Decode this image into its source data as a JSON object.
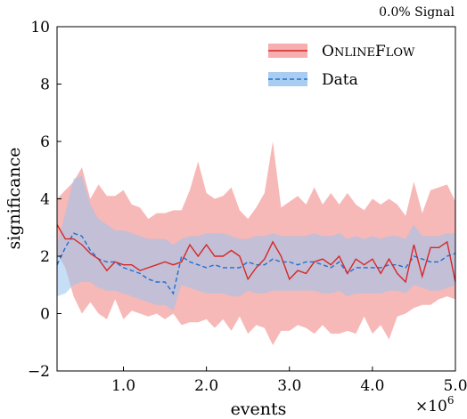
{
  "chart_data": {
    "type": "line",
    "annotation": "0.0% Signal",
    "xlabel": "events",
    "ylabel": "significance",
    "x_multiplier_label": "×10",
    "x_multiplier_exp": "6",
    "xlim": [
      0.2,
      5.0
    ],
    "ylim": [
      -2,
      10
    ],
    "x_ticks": [
      1.0,
      2.0,
      3.0,
      4.0,
      5.0
    ],
    "x_tick_labels": [
      "1.0",
      "2.0",
      "3.0",
      "4.0",
      "5.0"
    ],
    "y_ticks": [
      -2,
      0,
      2,
      4,
      6,
      8,
      10
    ],
    "y_tick_labels": [
      "−2",
      "0",
      "2",
      "4",
      "6",
      "8",
      "10"
    ],
    "grid": false,
    "legend_position": "top-right",
    "series": [
      {
        "name": "OnlineFlow",
        "legend_small_caps": true,
        "line_color": "#d62728",
        "band_color": "#f4a0a0",
        "style": "solid",
        "x": [
          0.2,
          0.3,
          0.4,
          0.5,
          0.6,
          0.7,
          0.8,
          0.9,
          1.0,
          1.1,
          1.2,
          1.3,
          1.4,
          1.5,
          1.6,
          1.7,
          1.8,
          1.9,
          2.0,
          2.1,
          2.2,
          2.3,
          2.4,
          2.5,
          2.6,
          2.7,
          2.8,
          2.9,
          3.0,
          3.1,
          3.2,
          3.3,
          3.4,
          3.5,
          3.6,
          3.7,
          3.8,
          3.9,
          4.0,
          4.1,
          4.2,
          4.3,
          4.4,
          4.5,
          4.6,
          4.7,
          4.8,
          4.9,
          5.0
        ],
        "values": [
          3.1,
          2.6,
          2.6,
          2.4,
          2.1,
          1.9,
          1.5,
          1.8,
          1.7,
          1.7,
          1.5,
          1.6,
          1.7,
          1.8,
          1.7,
          1.8,
          2.4,
          2.0,
          2.4,
          2.0,
          2.0,
          2.2,
          2.0,
          1.2,
          1.6,
          1.9,
          2.5,
          2.0,
          1.2,
          1.5,
          1.4,
          1.8,
          1.9,
          1.7,
          2.0,
          1.4,
          1.9,
          1.7,
          1.9,
          1.4,
          1.9,
          1.4,
          1.1,
          2.4,
          1.3,
          2.3,
          2.3,
          2.5,
          1.1
        ],
        "upper": [
          4.0,
          4.3,
          4.6,
          5.1,
          4.0,
          4.5,
          4.1,
          4.1,
          4.3,
          3.8,
          3.7,
          3.3,
          3.5,
          3.5,
          3.6,
          3.6,
          4.3,
          5.3,
          4.2,
          4.0,
          4.1,
          4.4,
          3.6,
          3.3,
          3.7,
          4.2,
          6.0,
          3.7,
          3.9,
          4.1,
          3.8,
          4.4,
          3.8,
          4.2,
          3.8,
          4.2,
          3.8,
          3.6,
          4.0,
          3.8,
          4.0,
          3.8,
          3.4,
          4.6,
          3.5,
          4.3,
          4.4,
          4.5,
          3.9
        ],
        "lower": [
          2.1,
          1.6,
          0.6,
          0.0,
          0.4,
          0.0,
          -0.2,
          0.5,
          -0.2,
          0.1,
          0.0,
          -0.1,
          0.0,
          -0.2,
          0.0,
          -0.4,
          -0.3,
          -0.3,
          -0.2,
          -0.5,
          -0.2,
          -0.6,
          -0.1,
          -0.7,
          -0.4,
          -0.5,
          -1.1,
          -0.6,
          -0.6,
          -0.4,
          -0.5,
          -0.7,
          -0.4,
          -0.7,
          -0.7,
          -0.6,
          -0.7,
          -0.1,
          -0.7,
          -0.4,
          -0.9,
          -0.1,
          0.0,
          0.2,
          0.3,
          0.3,
          0.5,
          0.6,
          0.5
        ]
      },
      {
        "name": "Data",
        "legend_small_caps": false,
        "line_color": "#1f6fd1",
        "band_color": "#99c4ee",
        "style": "dashed",
        "x": [
          0.2,
          0.3,
          0.4,
          0.5,
          0.6,
          0.7,
          0.8,
          0.9,
          1.0,
          1.1,
          1.2,
          1.3,
          1.4,
          1.5,
          1.6,
          1.7,
          1.8,
          1.9,
          2.0,
          2.1,
          2.2,
          2.3,
          2.4,
          2.5,
          2.6,
          2.7,
          2.8,
          2.9,
          3.0,
          3.1,
          3.2,
          3.3,
          3.4,
          3.5,
          3.6,
          3.7,
          3.8,
          3.9,
          4.0,
          4.1,
          4.2,
          4.3,
          4.4,
          4.5,
          4.6,
          4.7,
          4.8,
          4.9,
          5.0
        ],
        "values": [
          1.7,
          2.3,
          2.8,
          2.7,
          2.2,
          1.9,
          1.8,
          1.8,
          1.6,
          1.5,
          1.4,
          1.2,
          1.1,
          1.1,
          0.7,
          2.0,
          1.8,
          1.7,
          1.6,
          1.7,
          1.6,
          1.6,
          1.6,
          1.8,
          1.7,
          1.7,
          1.9,
          1.8,
          1.8,
          1.7,
          1.8,
          1.8,
          1.7,
          1.6,
          1.8,
          1.4,
          1.6,
          1.6,
          1.6,
          1.6,
          1.7,
          1.7,
          1.6,
          2.0,
          1.9,
          1.8,
          1.8,
          2.0,
          2.1
        ],
        "upper": [
          2.4,
          3.5,
          4.7,
          4.8,
          3.8,
          3.3,
          3.1,
          2.9,
          2.9,
          2.8,
          2.7,
          2.6,
          2.6,
          2.6,
          2.4,
          2.6,
          2.7,
          2.7,
          2.8,
          2.8,
          2.8,
          2.7,
          2.6,
          2.6,
          2.7,
          2.7,
          2.8,
          2.7,
          2.7,
          2.7,
          2.7,
          2.8,
          2.7,
          2.7,
          2.8,
          2.6,
          2.7,
          2.6,
          2.7,
          2.6,
          2.7,
          2.7,
          2.6,
          3.1,
          2.7,
          2.7,
          2.7,
          2.8,
          2.8
        ],
        "lower": [
          0.6,
          0.7,
          1.0,
          1.1,
          1.1,
          0.9,
          0.8,
          0.8,
          0.7,
          0.6,
          0.5,
          0.4,
          0.3,
          0.3,
          0.1,
          1.0,
          0.9,
          0.8,
          0.7,
          0.7,
          0.7,
          0.6,
          0.6,
          0.8,
          0.7,
          0.7,
          0.8,
          0.8,
          0.8,
          0.8,
          0.8,
          0.8,
          0.7,
          0.7,
          0.8,
          0.6,
          0.7,
          0.7,
          0.7,
          0.7,
          0.8,
          0.8,
          0.7,
          1.0,
          0.9,
          0.8,
          0.8,
          0.9,
          1.0
        ]
      }
    ]
  }
}
